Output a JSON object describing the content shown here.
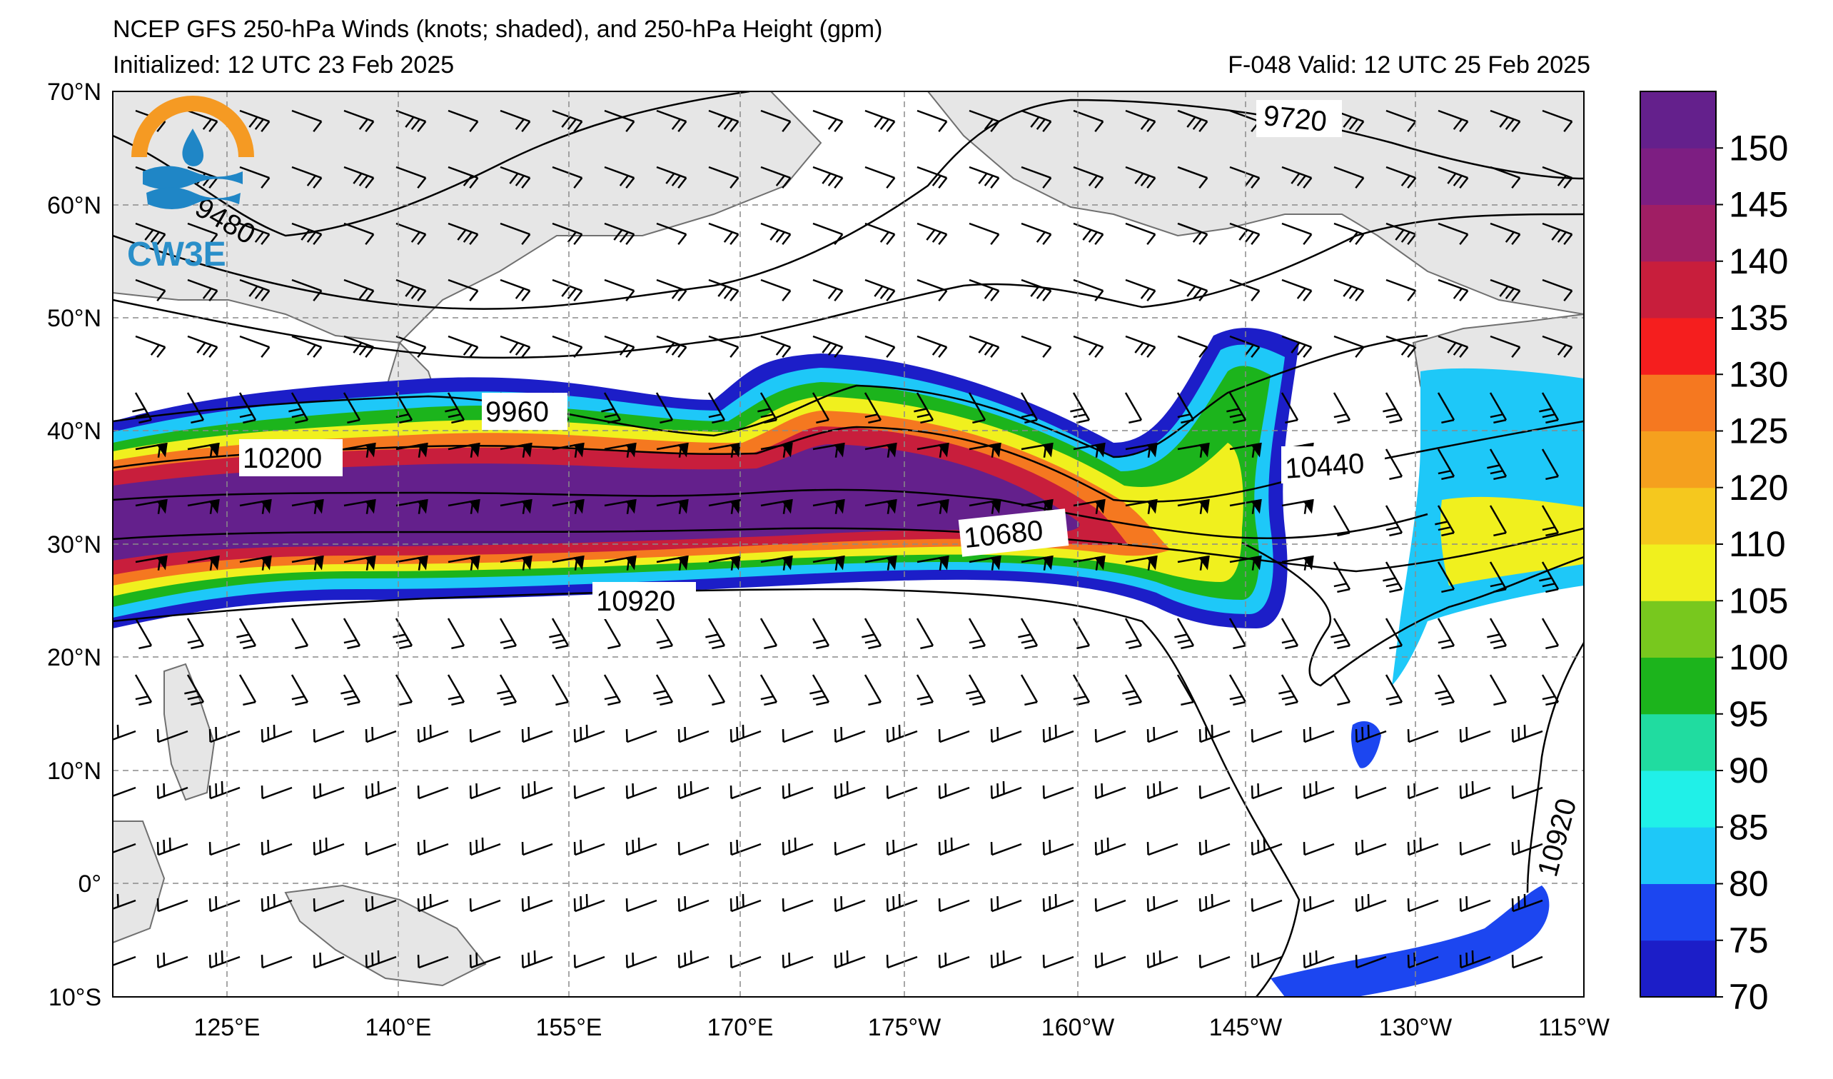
{
  "header": {
    "title": "NCEP GFS 250-hPa Winds (knots; shaded), and 250-hPa Height (gpm)",
    "initialized": "Initialized: 12 UTC 23 Feb 2025",
    "valid": "F-048  Valid: 12 UTC 25 Feb 2025"
  },
  "logo": {
    "text": "CW3E",
    "colors": {
      "ring": "#f59a23",
      "wave": "#1f86c6",
      "text": "#2a8fc9"
    }
  },
  "axes": {
    "lat_labels": [
      "70°N",
      "60°N",
      "50°N",
      "40°N",
      "30°N",
      "20°N",
      "10°N",
      "0°",
      "10°S"
    ],
    "lon_labels": [
      "125°E",
      "140°E",
      "155°E",
      "170°E",
      "175°W",
      "160°W",
      "145°W",
      "130°W",
      "115°W"
    ]
  },
  "contour_labels": [
    "9720",
    "9960",
    "10200",
    "10440",
    "10680",
    "10920",
    "10920",
    "9480"
  ],
  "colorbar": {
    "ticks": [
      "70",
      "75",
      "80",
      "85",
      "90",
      "95",
      "100",
      "105",
      "110",
      "120",
      "125",
      "130",
      "135",
      "140",
      "145",
      "150"
    ],
    "colors": [
      "#1c1ec8",
      "#1c46f0",
      "#1ec8f8",
      "#20f0e8",
      "#20dca0",
      "#1cb41c",
      "#78c81e",
      "#f0f01e",
      "#f5c81e",
      "#f5a01e",
      "#f57820",
      "#f51e1e",
      "#c81e3c",
      "#a01e64",
      "#7d1e82",
      "#64208c"
    ]
  }
}
